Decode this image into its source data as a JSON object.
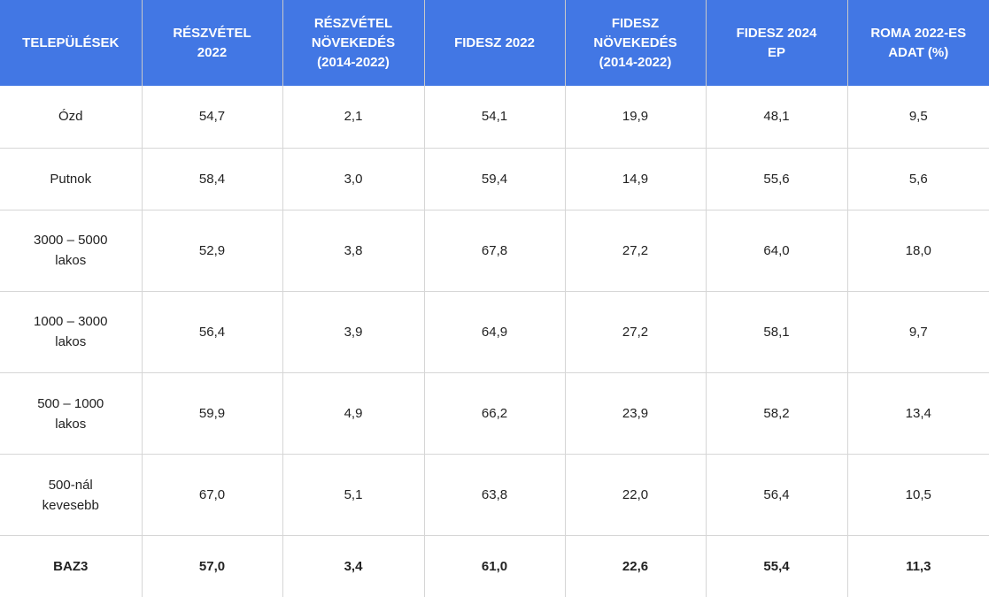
{
  "table": {
    "headers": [
      "TELEPÜLÉSEK",
      "RÉSZVÉTEL\n2022",
      "RÉSZVÉTEL\nNÖVEKEDÉS\n(2014-2022)",
      "FIDESZ 2022",
      "FIDESZ\nNÖVEKEDÉS\n(2014-2022)",
      "FIDESZ 2024\nEP",
      "ROMA 2022-ES\nADAT (%)"
    ],
    "rows": [
      [
        "Ózd",
        "54,7",
        "2,1",
        "54,1",
        "19,9",
        "48,1",
        "9,5"
      ],
      [
        "Putnok",
        "58,4",
        "3,0",
        "59,4",
        "14,9",
        "55,6",
        "5,6"
      ],
      [
        "3000 – 5000\nlakos",
        "52,9",
        "3,8",
        "67,8",
        "27,2",
        "64,0",
        "18,0"
      ],
      [
        "1000 – 3000\nlakos",
        "56,4",
        "3,9",
        "64,9",
        "27,2",
        "58,1",
        "9,7"
      ],
      [
        "500 – 1000\nlakos",
        "59,9",
        "4,9",
        "66,2",
        "23,9",
        "58,2",
        "13,4"
      ],
      [
        "500-nál\nkevesebb",
        "67,0",
        "5,1",
        "63,8",
        "22,0",
        "56,4",
        "10,5"
      ],
      [
        "BAZ3",
        "57,0",
        "3,4",
        "61,0",
        "22,6",
        "55,4",
        "11,3"
      ]
    ]
  },
  "colors": {
    "header_background": "#4277e4",
    "header_text": "#ffffff",
    "body_text": "#222222",
    "grid_lines": "#d6d6d6"
  }
}
